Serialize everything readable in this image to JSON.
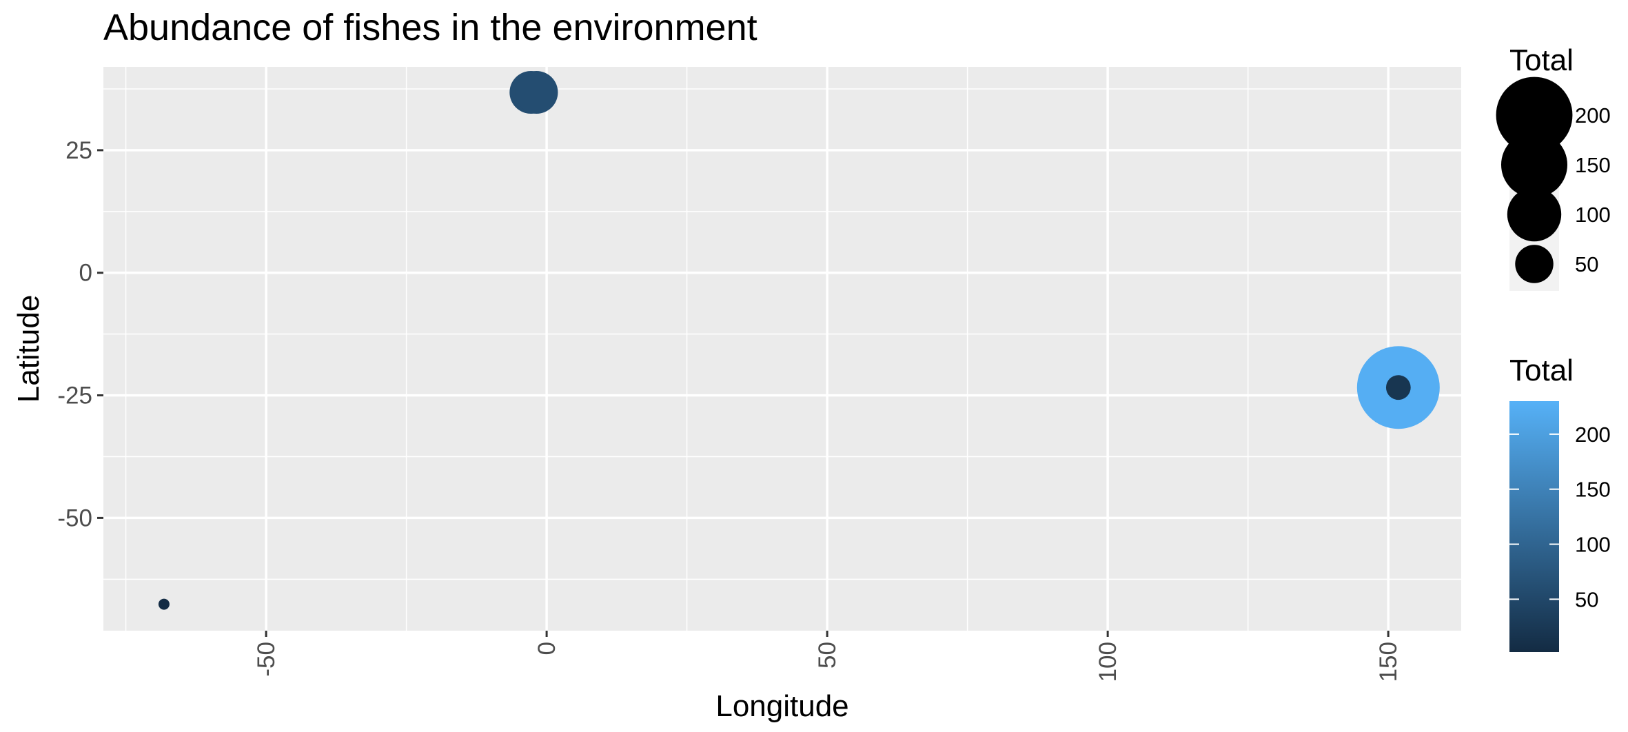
{
  "chart_data": {
    "type": "scatter",
    "title": "Abundance of fishes in the environment",
    "xlabel": "Longitude",
    "ylabel": "Latitude",
    "xlim": [
      -79,
      163
    ],
    "ylim": [
      -73,
      42
    ],
    "x_ticks": [
      -50,
      0,
      50,
      100,
      150
    ],
    "x_tick_labels": [
      "-50",
      "0",
      "50",
      "100",
      "150"
    ],
    "y_ticks": [
      25,
      0,
      -25,
      -50
    ],
    "y_tick_labels": [
      "25",
      "0",
      "-25",
      "-50"
    ],
    "x_minor_ticks": [
      -75,
      -25,
      25,
      75,
      125
    ],
    "y_minor_ticks": [
      37.5,
      12.5,
      -12.5,
      -37.5,
      -62.5
    ],
    "grid": true,
    "color_low": "#132B43",
    "color_high": "#56B1F7",
    "panel_color": "#EBEBEB",
    "points": [
      {
        "x": -68.2,
        "y": -67.6,
        "total": 4
      },
      {
        "x": -2.8,
        "y": 36.8,
        "total": 60
      },
      {
        "x": -1.8,
        "y": 36.8,
        "total": 60
      },
      {
        "x": 151.8,
        "y": -23.4,
        "total": 225
      },
      {
        "x": 151.8,
        "y": -23.4,
        "total": 20
      }
    ],
    "size_legend": {
      "title": "Total",
      "values": [
        200,
        150,
        100,
        50
      ],
      "labels": [
        "200",
        "150",
        "100",
        "50"
      ]
    },
    "color_legend": {
      "title": "Total",
      "range": [
        2,
        230
      ],
      "values": [
        200,
        150,
        100,
        50
      ],
      "labels": [
        "200",
        "150",
        "100",
        "50"
      ]
    }
  }
}
